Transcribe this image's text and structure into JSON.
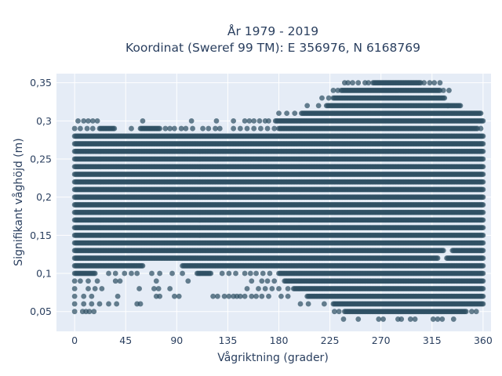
{
  "chart_data": {
    "type": "scatter",
    "title": [
      "År 1979 - 2019",
      "Koordinat (Sweref 99 TM): E 356976, N 6168769"
    ],
    "xlabel": "Vågriktning (grader)",
    "ylabel": "Signifikant våghöjd (m)",
    "xlim": [
      -16,
      367
    ],
    "ylim": [
      0.024,
      0.362
    ],
    "xticks": [
      0,
      45,
      90,
      135,
      180,
      225,
      270,
      315,
      360
    ],
    "xtick_labels": [
      "0",
      "45",
      "90",
      "135",
      "180",
      "225",
      "270",
      "315",
      "360"
    ],
    "yticks": [
      0.05,
      0.1,
      0.15,
      0.2,
      0.25,
      0.3,
      0.35
    ],
    "ytick_labels": [
      "0,05",
      "0,1",
      "0,15",
      "0,2",
      "0,25",
      "0,3",
      "0,35"
    ],
    "grid": true,
    "marker_color": "#2f5064",
    "plot_background": "#e5ecf6",
    "grid_color": "#ffffff",
    "text_color": "#2a3f5f",
    "direction_step": 1,
    "height_step": 0.01,
    "series": [
      {
        "dense_rows": [
          {
            "y": 0.05,
            "x": [
              [
                238,
                345
              ]
            ]
          },
          {
            "y": 0.06,
            "x": [
              [
                228,
                360
              ]
            ]
          },
          {
            "y": 0.07,
            "x": [
              [
                205,
                360
              ]
            ]
          },
          {
            "y": 0.08,
            "x": [
              [
                193,
                360
              ]
            ]
          },
          {
            "y": 0.09,
            "x": [
              [
                185,
                360
              ]
            ]
          },
          {
            "y": 0.1,
            "x": [
              [
                0,
                18
              ],
              [
                108,
                120
              ],
              [
                180,
                360
              ]
            ]
          },
          {
            "y": 0.11,
            "x": [
              [
                0,
                60
              ],
              [
                95,
                360
              ]
            ]
          },
          {
            "y": 0.12,
            "x": [
              [
                0,
                320
              ],
              [
                328,
                360
              ]
            ]
          },
          {
            "y": 0.13,
            "x": [
              [
                0,
                325
              ],
              [
                333,
                360
              ]
            ]
          },
          {
            "y": 0.14,
            "x": [
              [
                0,
                360
              ]
            ]
          },
          {
            "y": 0.15,
            "x": [
              [
                0,
                360
              ]
            ]
          },
          {
            "y": 0.16,
            "x": [
              [
                0,
                360
              ]
            ]
          },
          {
            "y": 0.17,
            "x": [
              [
                0,
                360
              ]
            ]
          },
          {
            "y": 0.18,
            "x": [
              [
                0,
                360
              ]
            ]
          },
          {
            "y": 0.19,
            "x": [
              [
                0,
                360
              ]
            ]
          },
          {
            "y": 0.2,
            "x": [
              [
                0,
                360
              ]
            ]
          },
          {
            "y": 0.21,
            "x": [
              [
                0,
                360
              ]
            ]
          },
          {
            "y": 0.22,
            "x": [
              [
                0,
                360
              ]
            ]
          },
          {
            "y": 0.23,
            "x": [
              [
                0,
                360
              ]
            ]
          },
          {
            "y": 0.24,
            "x": [
              [
                0,
                360
              ]
            ]
          },
          {
            "y": 0.25,
            "x": [
              [
                0,
                360
              ]
            ]
          },
          {
            "y": 0.26,
            "x": [
              [
                0,
                360
              ]
            ]
          },
          {
            "y": 0.27,
            "x": [
              [
                0,
                360
              ]
            ]
          },
          {
            "y": 0.28,
            "x": [
              [
                0,
                360
              ]
            ]
          },
          {
            "y": 0.29,
            "x": [
              [
                22,
                35
              ],
              [
                58,
                75
              ],
              [
                180,
                355
              ]
            ]
          },
          {
            "y": 0.3,
            "x": [
              [
                177,
                360
              ]
            ]
          },
          {
            "y": 0.31,
            "x": [
              [
                200,
                358
              ]
            ]
          },
          {
            "y": 0.32,
            "x": [
              [
                222,
                340
              ]
            ]
          },
          {
            "y": 0.33,
            "x": [
              [
                228,
                325
              ]
            ]
          },
          {
            "y": 0.34,
            "x": [
              [
                235,
                322
              ]
            ]
          },
          {
            "y": 0.35,
            "x": [
              [
                263,
                305
              ]
            ]
          }
        ],
        "sparse_points": [
          [
            0,
            0.05
          ],
          [
            7,
            0.05
          ],
          [
            10,
            0.05
          ],
          [
            13,
            0.05
          ],
          [
            17,
            0.05
          ],
          [
            0,
            0.06
          ],
          [
            8,
            0.06
          ],
          [
            15,
            0.06
          ],
          [
            22,
            0.06
          ],
          [
            30,
            0.06
          ],
          [
            37,
            0.06
          ],
          [
            55,
            0.06
          ],
          [
            58,
            0.06
          ],
          [
            199,
            0.06
          ],
          [
            206,
            0.06
          ],
          [
            220,
            0.06
          ],
          [
            0,
            0.07
          ],
          [
            8,
            0.07
          ],
          [
            15,
            0.07
          ],
          [
            38,
            0.07
          ],
          [
            72,
            0.07
          ],
          [
            75,
            0.07
          ],
          [
            88,
            0.07
          ],
          [
            92,
            0.07
          ],
          [
            122,
            0.07
          ],
          [
            126,
            0.07
          ],
          [
            132,
            0.07
          ],
          [
            136,
            0.07
          ],
          [
            140,
            0.07
          ],
          [
            143,
            0.07
          ],
          [
            146,
            0.07
          ],
          [
            150,
            0.07
          ],
          [
            156,
            0.07
          ],
          [
            160,
            0.07
          ],
          [
            165,
            0.07
          ],
          [
            171,
            0.07
          ],
          [
            182,
            0.07
          ],
          [
            188,
            0.07
          ],
          [
            0,
            0.08
          ],
          [
            12,
            0.08
          ],
          [
            18,
            0.08
          ],
          [
            24,
            0.08
          ],
          [
            57,
            0.08
          ],
          [
            70,
            0.08
          ],
          [
            74,
            0.08
          ],
          [
            84,
            0.08
          ],
          [
            152,
            0.08
          ],
          [
            162,
            0.08
          ],
          [
            168,
            0.08
          ],
          [
            174,
            0.08
          ],
          [
            180,
            0.08
          ],
          [
            188,
            0.08
          ],
          [
            0,
            0.09
          ],
          [
            5,
            0.09
          ],
          [
            12,
            0.09
          ],
          [
            20,
            0.09
          ],
          [
            36,
            0.09
          ],
          [
            40,
            0.09
          ],
          [
            72,
            0.09
          ],
          [
            100,
            0.09
          ],
          [
            156,
            0.09
          ],
          [
            165,
            0.09
          ],
          [
            170,
            0.09
          ],
          [
            176,
            0.09
          ],
          [
            30,
            0.1
          ],
          [
            36,
            0.1
          ],
          [
            44,
            0.1
          ],
          [
            50,
            0.1
          ],
          [
            55,
            0.1
          ],
          [
            68,
            0.1
          ],
          [
            75,
            0.1
          ],
          [
            86,
            0.1
          ],
          [
            95,
            0.1
          ],
          [
            130,
            0.1
          ],
          [
            136,
            0.1
          ],
          [
            142,
            0.1
          ],
          [
            150,
            0.1
          ],
          [
            155,
            0.1
          ],
          [
            160,
            0.1
          ],
          [
            166,
            0.1
          ],
          [
            172,
            0.1
          ],
          [
            3,
            0.3
          ],
          [
            8,
            0.3
          ],
          [
            12,
            0.3
          ],
          [
            16,
            0.3
          ],
          [
            20,
            0.3
          ],
          [
            60,
            0.3
          ],
          [
            103,
            0.3
          ],
          [
            125,
            0.3
          ],
          [
            140,
            0.3
          ],
          [
            150,
            0.3
          ],
          [
            154,
            0.3
          ],
          [
            158,
            0.3
          ],
          [
            163,
            0.3
          ],
          [
            168,
            0.3
          ],
          [
            171,
            0.3
          ],
          [
            0,
            0.29
          ],
          [
            5,
            0.29
          ],
          [
            11,
            0.29
          ],
          [
            16,
            0.29
          ],
          [
            50,
            0.29
          ],
          [
            80,
            0.29
          ],
          [
            84,
            0.29
          ],
          [
            88,
            0.29
          ],
          [
            94,
            0.29
          ],
          [
            98,
            0.29
          ],
          [
            104,
            0.29
          ],
          [
            113,
            0.29
          ],
          [
            118,
            0.29
          ],
          [
            124,
            0.29
          ],
          [
            128,
            0.29
          ],
          [
            140,
            0.29
          ],
          [
            146,
            0.29
          ],
          [
            152,
            0.29
          ],
          [
            158,
            0.29
          ],
          [
            164,
            0.29
          ],
          [
            170,
            0.29
          ],
          [
            176,
            0.29
          ],
          [
            358,
            0.29
          ],
          [
            180,
            0.31
          ],
          [
            187,
            0.31
          ],
          [
            194,
            0.31
          ],
          [
            215,
            0.32
          ],
          [
            205,
            0.32
          ],
          [
            218,
            0.33
          ],
          [
            224,
            0.33
          ],
          [
            326,
            0.33
          ],
          [
            329,
            0.32
          ],
          [
            228,
            0.34
          ],
          [
            232,
            0.34
          ],
          [
            325,
            0.34
          ],
          [
            330,
            0.34
          ],
          [
            238,
            0.35
          ],
          [
            241,
            0.35
          ],
          [
            245,
            0.35
          ],
          [
            250,
            0.35
          ],
          [
            256,
            0.35
          ],
          [
            259,
            0.35
          ],
          [
            308,
            0.35
          ],
          [
            313,
            0.35
          ],
          [
            317,
            0.35
          ],
          [
            322,
            0.35
          ],
          [
            229,
            0.05
          ],
          [
            233,
            0.05
          ],
          [
            237,
            0.04
          ],
          [
            250,
            0.04
          ],
          [
            268,
            0.04
          ],
          [
            272,
            0.04
          ],
          [
            285,
            0.04
          ],
          [
            288,
            0.04
          ],
          [
            296,
            0.04
          ],
          [
            300,
            0.04
          ],
          [
            316,
            0.04
          ],
          [
            320,
            0.04
          ],
          [
            324,
            0.04
          ],
          [
            334,
            0.04
          ],
          [
            350,
            0.05
          ],
          [
            354,
            0.05
          ]
        ]
      }
    ]
  }
}
